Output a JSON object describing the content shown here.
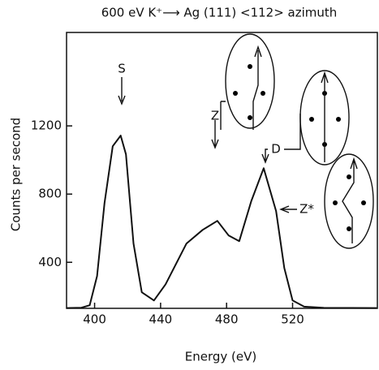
{
  "chart_data": {
    "type": "line",
    "title": "600 eV K⁺⟶ Ag (111) <112> azimuth",
    "x_label": "Energy (eV)",
    "y_label": "Counts per second",
    "x": [
      383,
      392,
      397,
      401.5,
      406,
      411,
      415.8,
      419,
      423.6,
      428.6,
      436,
      443,
      455.7,
      465.5,
      474.4,
      481.3,
      487.7,
      495,
      502.5,
      510,
      515,
      520,
      527,
      539,
      571
    ],
    "values": [
      132,
      134,
      148,
      319,
      748,
      1081,
      1143,
      1033,
      510,
      224,
      176,
      271,
      510,
      590,
      643,
      557,
      524,
      760,
      952,
      700,
      367,
      176,
      140,
      133,
      132
    ],
    "color": "#111111",
    "xlim": [
      383,
      571.4
    ],
    "ylim": [
      130,
      1748
    ],
    "xticks": [
      400,
      440,
      480,
      520
    ],
    "yticks": [
      400,
      800,
      1200
    ],
    "annotations": [
      "S",
      "Z",
      "D",
      "Z*"
    ]
  }
}
